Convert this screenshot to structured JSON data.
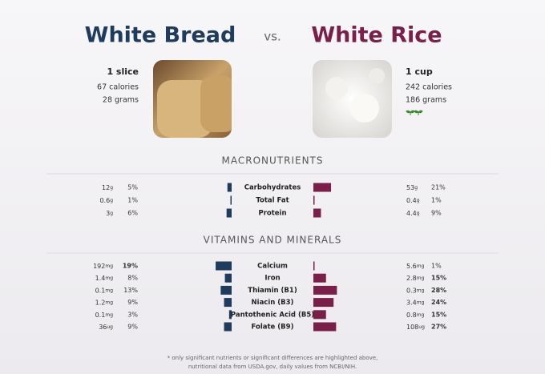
{
  "header": {
    "left_title": "White Bread",
    "vs": "vs.",
    "right_title": "White Rice"
  },
  "left": {
    "serving": "1 slice",
    "calories": "67 calories",
    "grams": "28 grams"
  },
  "right": {
    "serving": "1 cup",
    "calories": "242 calories",
    "grams": "186 grams"
  },
  "sections": [
    {
      "title": "MACRONUTRIENTS",
      "rows": [
        {
          "name": "Carbohydrates",
          "left_amount": "12",
          "left_unit": "g",
          "left_dv": 5,
          "left_dv_label": "5%",
          "right_amount": "53",
          "right_unit": "g",
          "right_dv": 21,
          "right_dv_label": "21%",
          "bold_left": false,
          "bold_right": false
        },
        {
          "name": "Total Fat",
          "left_amount": "0.6",
          "left_unit": "g",
          "left_dv": 1,
          "left_dv_label": "1%",
          "right_amount": "0.4",
          "right_unit": "g",
          "right_dv": 1,
          "right_dv_label": "1%",
          "bold_left": false,
          "bold_right": false
        },
        {
          "name": "Protein",
          "left_amount": "3",
          "left_unit": "g",
          "left_dv": 6,
          "left_dv_label": "6%",
          "right_amount": "4.4",
          "right_unit": "g",
          "right_dv": 9,
          "right_dv_label": "9%",
          "bold_left": false,
          "bold_right": false
        }
      ]
    },
    {
      "title": "VITAMINS AND MINERALS",
      "rows": [
        {
          "name": "Calcium",
          "left_amount": "192",
          "left_unit": "mg",
          "left_dv": 19,
          "left_dv_label": "19%",
          "right_amount": "5.6",
          "right_unit": "mg",
          "right_dv": 1,
          "right_dv_label": "1%",
          "bold_left": true,
          "bold_right": false
        },
        {
          "name": "Iron",
          "left_amount": "1.4",
          "left_unit": "mg",
          "left_dv": 8,
          "left_dv_label": "8%",
          "right_amount": "2.8",
          "right_unit": "mg",
          "right_dv": 15,
          "right_dv_label": "15%",
          "bold_left": false,
          "bold_right": true
        },
        {
          "name": "Thiamin (B1)",
          "left_amount": "0.1",
          "left_unit": "mg",
          "left_dv": 13,
          "left_dv_label": "13%",
          "right_amount": "0.3",
          "right_unit": "mg",
          "right_dv": 28,
          "right_dv_label": "28%",
          "bold_left": false,
          "bold_right": true
        },
        {
          "name": "Niacin (B3)",
          "left_amount": "1.2",
          "left_unit": "mg",
          "left_dv": 9,
          "left_dv_label": "9%",
          "right_amount": "3.4",
          "right_unit": "mg",
          "right_dv": 24,
          "right_dv_label": "24%",
          "bold_left": false,
          "bold_right": true
        },
        {
          "name": "Pantothenic Acid (B5)",
          "left_amount": "0.1",
          "left_unit": "mg",
          "left_dv": 3,
          "left_dv_label": "3%",
          "right_amount": "0.8",
          "right_unit": "mg",
          "right_dv": 15,
          "right_dv_label": "15%",
          "bold_left": false,
          "bold_right": true
        },
        {
          "name": "Folate (B9)",
          "left_amount": "36",
          "left_unit": "ug",
          "left_dv": 9,
          "left_dv_label": "9%",
          "right_amount": "108",
          "right_unit": "ug",
          "right_dv": 27,
          "right_dv_label": "27%",
          "bold_left": false,
          "bold_right": true
        }
      ]
    }
  ],
  "footnote": [
    "* only significant nutrients or significant differences are highlighted above,",
    "nutritional data from USDA.gov, daily values from NCBI/NIH."
  ]
}
